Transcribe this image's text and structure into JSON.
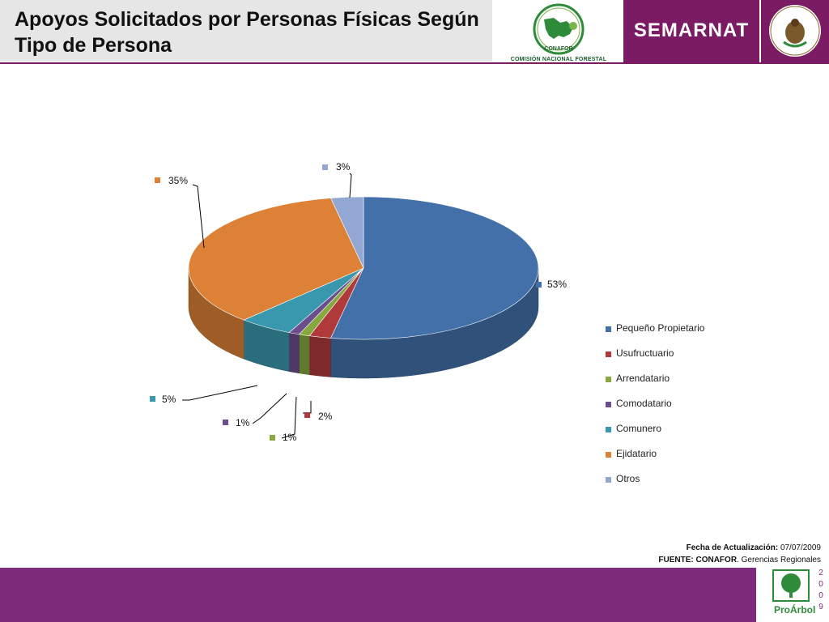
{
  "header": {
    "title": "Apoyos Solicitados por Personas Físicas Según Tipo de Persona",
    "conafor_caption": "COMISIÓN NACIONAL FORESTAL",
    "conafor_logo_text": "CONAFOR",
    "semarnat": "SEMARNAT",
    "seal_text": "ESTADOS UNIDOS MEXICANOS"
  },
  "chart_data": {
    "type": "pie",
    "style": "3d",
    "categories": [
      "Pequeño Propietario",
      "Usufructuario",
      "Arrendatario",
      "Comodatario",
      "Comunero",
      "Ejidatario",
      "Otros"
    ],
    "values": [
      53,
      2,
      1,
      1,
      5,
      35,
      3
    ],
    "labels": [
      "53%",
      "2%",
      "1%",
      "1%",
      "5%",
      "35%",
      "3%"
    ],
    "colors": [
      "#4370a8",
      "#b03a3a",
      "#86a83e",
      "#6b4e8e",
      "#3a98ae",
      "#dc8136",
      "#92a8d2"
    ],
    "legend_position": "right"
  },
  "footnote": {
    "fecha_label": "Fecha de Actualización:",
    "fecha_value": "07/07/2009",
    "fuente_label": "FUENTE: CONAFOR",
    "fuente_value": ". Gerencias Regionales"
  },
  "footer": {
    "proarbol": "ProÁrbol",
    "year_digits": [
      "2",
      "0",
      "0",
      "9"
    ]
  }
}
